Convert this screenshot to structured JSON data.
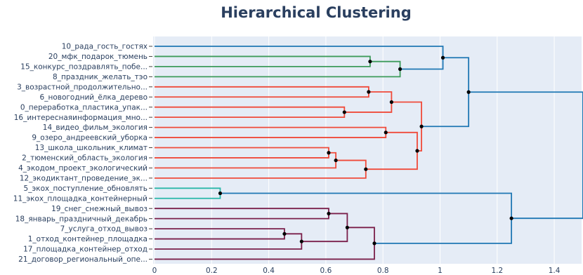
{
  "chart_data": {
    "type": "dendrogram",
    "title": "Hierarchical Clustering",
    "xlim": [
      0,
      1.5
    ],
    "x_ticks": [
      0,
      0.2,
      0.4,
      0.6,
      0.8,
      1,
      1.2,
      1.4
    ],
    "x_tick_labels": [
      "0",
      "0.2",
      "0.4",
      "0.6",
      "0.8",
      "1",
      "1.2",
      "1.4"
    ],
    "leaves": [
      "10_рада_гость_гостях",
      "20_мфк_подарок_тюмень",
      "15_конкурс_поздравлять_побе...",
      "8_праздник_желать_тэо",
      "3_возрастной_продолжительно...",
      "6_новогодний_ёлка_дерево",
      "0_переработка_пластика_упак...",
      "16_интереснаяинформация_мно...",
      "14_видео_фильм_экология",
      "9_озеро_андреевский_уборка",
      "13_школа_школьник_климат",
      "2_тюменский_область_экология",
      "4_экодом_проект_экологический",
      "12_экодиктант_проведение_эк...",
      "5_экох_поступление_обновлять",
      "11_экох_площадка_контейнерный",
      "19_снег_снежный_вывоз",
      "18_январь_праздничный_декабрь",
      "7_услуга_отход_вывоз",
      "1_отход_контейнер_площадка",
      "17_площадка_контейнер_отход",
      "21_договор_региональный_опе..."
    ],
    "colors": {
      "blue": "#1f77b4",
      "green": "#3d9b5b",
      "red": "#f04a3a",
      "teal": "#2ab7a9",
      "maroon": "#7a1f4a",
      "plot_bg": "#e5ecf6",
      "grid": "#ffffff",
      "text": "#2a3f5f"
    },
    "merges": [
      {
        "id": "n1",
        "height": 0.755,
        "children": [
          "l1",
          "l2"
        ],
        "color": "green"
      },
      {
        "id": "n2",
        "height": 0.86,
        "children": [
          "n1",
          "l3"
        ],
        "color": "green"
      },
      {
        "id": "n3",
        "height": 1.01,
        "children": [
          "l0",
          "n2"
        ],
        "color": "blue"
      },
      {
        "id": "n4",
        "height": 0.75,
        "children": [
          "l4",
          "l5"
        ],
        "color": "red"
      },
      {
        "id": "n5",
        "height": 0.665,
        "children": [
          "l6",
          "l7"
        ],
        "color": "red"
      },
      {
        "id": "n6",
        "height": 0.83,
        "children": [
          "n4",
          "n5"
        ],
        "color": "red"
      },
      {
        "id": "n7",
        "height": 0.81,
        "children": [
          "l8",
          "l9"
        ],
        "color": "red"
      },
      {
        "id": "n8",
        "height": 0.61,
        "children": [
          "l10",
          "l11"
        ],
        "color": "red"
      },
      {
        "id": "n9",
        "height": 0.635,
        "children": [
          "n8",
          "l12"
        ],
        "color": "red"
      },
      {
        "id": "n10",
        "height": 0.74,
        "children": [
          "n9",
          "l13"
        ],
        "color": "red"
      },
      {
        "id": "n11",
        "height": 0.92,
        "children": [
          "n7",
          "n10"
        ],
        "color": "red"
      },
      {
        "id": "n12",
        "height": 0.935,
        "children": [
          "n6",
          "n11"
        ],
        "color": "red"
      },
      {
        "id": "n13",
        "height": 1.1,
        "children": [
          "n3",
          "n12"
        ],
        "color": "blue"
      },
      {
        "id": "n14",
        "height": 0.23,
        "children": [
          "l14",
          "l15"
        ],
        "color": "teal"
      },
      {
        "id": "n15",
        "height": 0.61,
        "children": [
          "l16",
          "l17"
        ],
        "color": "maroon"
      },
      {
        "id": "n16",
        "height": 0.455,
        "children": [
          "l18",
          "l19"
        ],
        "color": "maroon"
      },
      {
        "id": "n17",
        "height": 0.515,
        "children": [
          "n16",
          "l20"
        ],
        "color": "maroon"
      },
      {
        "id": "n18",
        "height": 0.675,
        "children": [
          "n15",
          "n17"
        ],
        "color": "maroon"
      },
      {
        "id": "n19",
        "height": 0.77,
        "children": [
          "n18",
          "l21"
        ],
        "color": "maroon"
      },
      {
        "id": "n20",
        "height": 1.25,
        "children": [
          "n14",
          "n19"
        ],
        "color": "blue"
      },
      {
        "id": "n21",
        "height": 1.5,
        "children": [
          "n13",
          "n20"
        ],
        "color": "blue"
      }
    ]
  }
}
